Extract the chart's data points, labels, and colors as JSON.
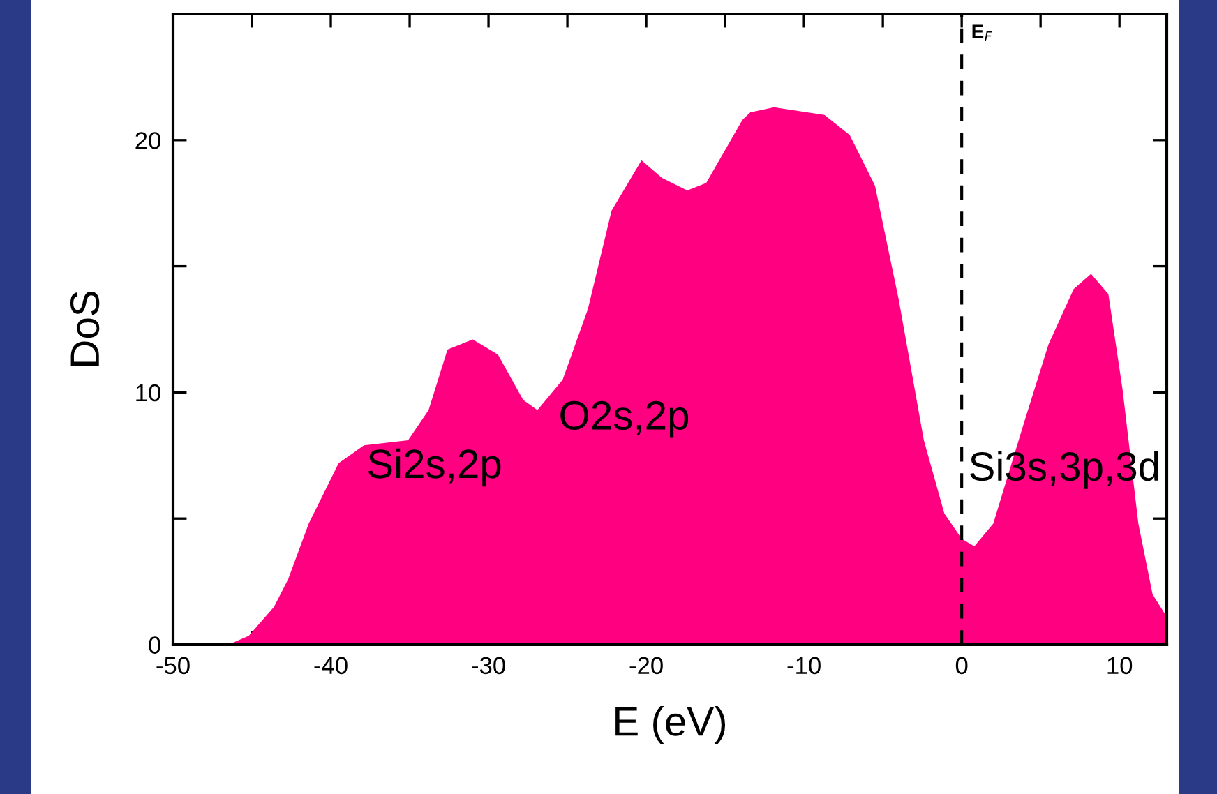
{
  "chart_data": {
    "type": "area",
    "xlabel": "E (eV)",
    "ylabel": "DoS",
    "x": [
      -46.5,
      -45.2,
      -43.6,
      -42.7,
      -41.4,
      -39.5,
      -37.9,
      -35.1,
      -33.8,
      -32.6,
      -31.0,
      -29.4,
      -27.8,
      -26.9,
      -25.3,
      -23.7,
      -22.2,
      -20.3,
      -19.0,
      -17.4,
      -16.2,
      -13.9,
      -13.4,
      -11.9,
      -8.7,
      -7.1,
      -5.5,
      -4.0,
      -2.4,
      -1.1,
      0.0,
      0.8,
      2.0,
      3.9,
      5.5,
      7.1,
      8.2,
      9.3,
      10.2,
      11.2,
      12.1,
      12.9
    ],
    "series": [
      {
        "color": "#ff0080",
        "values": [
          0,
          0.35,
          1.5,
          2.6,
          4.8,
          7.2,
          7.9,
          8.1,
          9.3,
          11.7,
          12.1,
          11.5,
          9.7,
          9.3,
          10.5,
          13.3,
          17.2,
          19.2,
          18.5,
          18.0,
          18.3,
          20.8,
          21.1,
          21.3,
          21.0,
          20.2,
          18.2,
          13.7,
          8.1,
          5.2,
          4.2,
          3.9,
          4.8,
          8.7,
          11.9,
          14.1,
          14.7,
          13.9,
          10.1,
          4.8,
          2.0,
          1.2
        ]
      }
    ],
    "xlim": [
      -50,
      13
    ],
    "ylim": [
      0,
      25
    ],
    "xticks": [
      -50,
      {
        "value": -45,
        "label": null
      },
      -40,
      {
        "value": -35,
        "label": null
      },
      -30,
      {
        "value": -25,
        "label": null
      },
      -20,
      {
        "value": -15,
        "label": null
      },
      -10,
      {
        "value": -5,
        "label": null
      },
      0,
      {
        "value": 5,
        "label": null
      },
      10
    ],
    "yticks": [
      0,
      {
        "value": 5,
        "label": null
      },
      10,
      {
        "value": 15,
        "label": null
      },
      20
    ],
    "ref_lines": [
      {
        "axis": "x",
        "value": 0,
        "label": "E$_{F}$",
        "color": "#000000",
        "line_style": "dashed"
      }
    ],
    "annotations": [
      "Si2s,2p",
      "O2s,2p",
      "Si3s,3p,3d"
    ],
    "grid": false,
    "legend": false
  }
}
